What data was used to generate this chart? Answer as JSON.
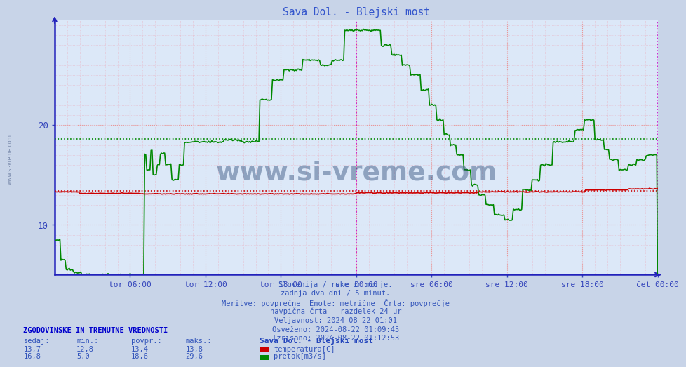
{
  "title": "Sava Dol. - Blejski most",
  "bg_color": "#c8d4e8",
  "plot_bg_color": "#dce8f8",
  "grid_minor_color": "#e8b8c8",
  "grid_major_color": "#e89898",
  "axis_color": "#2222bb",
  "label_color": "#3344bb",
  "title_color": "#3355cc",
  "temp_color": "#cc0000",
  "flow_color": "#008800",
  "temp_avg": 13.4,
  "flow_avg": 18.6,
  "ylim_min": 5.0,
  "ylim_max": 30.5,
  "ytick_labels": [
    "10",
    "20"
  ],
  "ytick_vals": [
    10,
    20
  ],
  "xtick_labels": [
    "tor 06:00",
    "tor 12:00",
    "tor 18:00",
    "sre 00:00",
    "sre 06:00",
    "sre 12:00",
    "sre 18:00",
    "čet 00:00"
  ],
  "xtick_positions_norm": [
    0.125,
    0.25,
    0.375,
    0.5,
    0.625,
    0.75,
    0.875,
    1.0
  ],
  "midnight_line_color": "#cc00cc",
  "info_text": [
    "Slovenija / reke in morje.",
    "zadnja dva dni / 5 minut.",
    "Meritve: povprečne  Enote: metrične  Črta: povprečje",
    "navpična črta - razdelek 24 ur",
    "Veljavnost: 2024-08-22 01:01",
    "Osveženo: 2024-08-22 01:09:45",
    "Izrisano: 2024-08-22 01:12:53"
  ],
  "table_header": "ZGODOVINSKE IN TRENUTNE VREDNOSTI",
  "col_headers": [
    "sedaj:",
    "min.:",
    "povpr.:",
    "maks.:"
  ],
  "row1_vals": [
    "13,7",
    "12,8",
    "13,4",
    "13,8"
  ],
  "row2_vals": [
    "16,8",
    "5,0",
    "18,6",
    "29,6"
  ],
  "station_name": "Sava Dol. - Blejski most",
  "legend1": "temperatura[C]",
  "legend2": "pretok[m3/s]",
  "watermark": "www.si-vreme.com",
  "watermark_color": "#1a3a6a",
  "sidebar_text": "www.si-vreme.com",
  "sidebar_color": "#7788aa"
}
